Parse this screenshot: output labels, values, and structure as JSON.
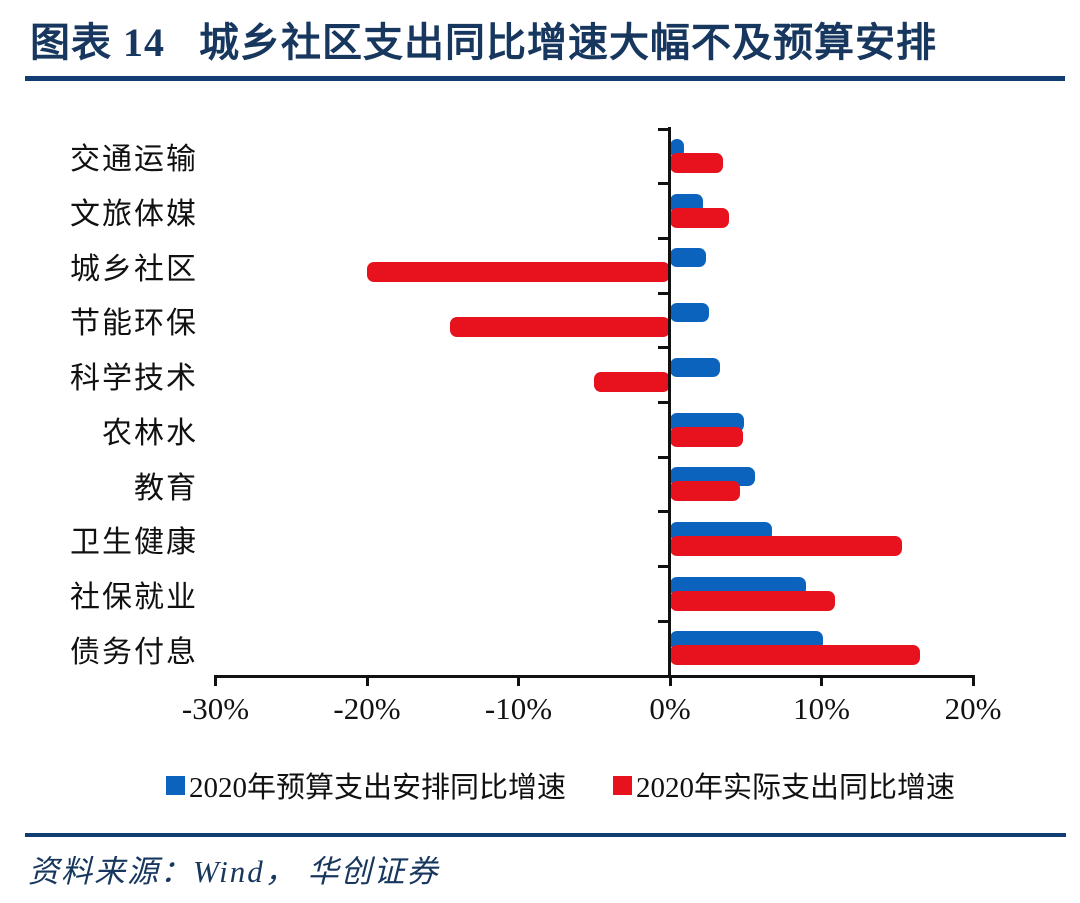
{
  "header": {
    "figure_label": "图表 14",
    "title": "城乡社区支出同比增速大幅不及预算安排"
  },
  "chart_data": {
    "type": "bar",
    "orientation": "horizontal",
    "title": "城乡社区支出同比增速大幅不及预算安排",
    "categories": [
      "交通运输",
      "文旅体媒",
      "城乡社区",
      "节能环保",
      "科学技术",
      "农林水",
      "教育",
      "卫生健康",
      "社保就业",
      "债务付息"
    ],
    "series": [
      {
        "name": "2020年预算支出安排同比增速",
        "color": "#0B63BE",
        "values": [
          0.9,
          2.2,
          2.4,
          2.6,
          3.3,
          4.9,
          5.6,
          6.7,
          9.0,
          10.1
        ]
      },
      {
        "name": "2020年实际支出同比增速",
        "color": "#E8121F",
        "values": [
          3.5,
          3.9,
          -20.0,
          -14.5,
          -5.0,
          4.8,
          4.6,
          15.3,
          10.9,
          16.5
        ]
      }
    ],
    "x_axis": {
      "unit": "%",
      "min": -30,
      "max": 20,
      "tick_values": [
        -30,
        -20,
        -10,
        0,
        10,
        20
      ],
      "tick_labels": [
        "-30%",
        "-20%",
        "-10%",
        "0%",
        "10%",
        "20%"
      ]
    },
    "legend_position": "bottom",
    "grid": false
  },
  "footer": {
    "source_text": "资料来源：Wind， 华创证券"
  },
  "colors": {
    "navy_text": "#17375E",
    "navy_rule": "#113D73",
    "bar_blue": "#0B63BE",
    "bar_red": "#E8121F",
    "axis_black": "#111111"
  }
}
